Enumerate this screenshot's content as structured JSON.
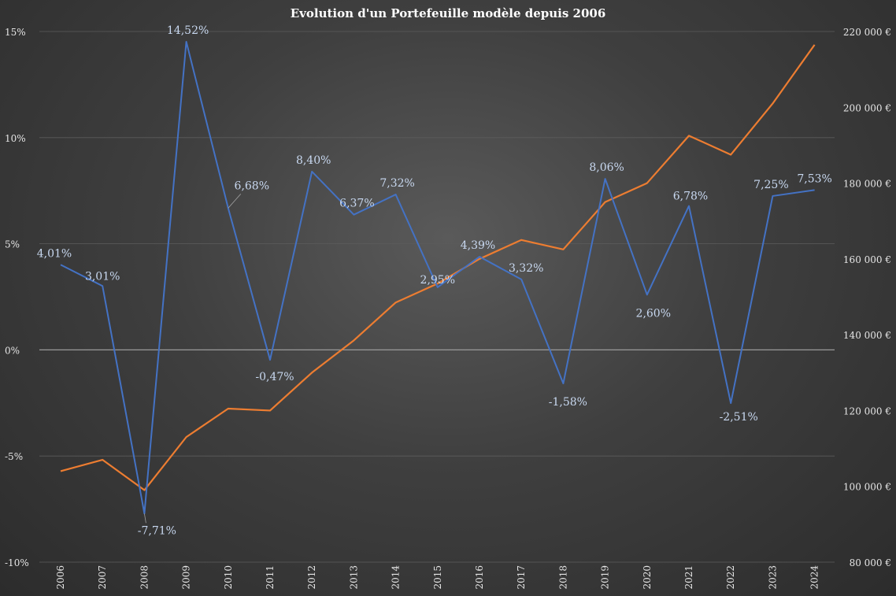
{
  "chart_data": {
    "type": "line",
    "title": "Evolution d'un Portefeuille modèle depuis 2006",
    "categories": [
      "2006",
      "2007",
      "2008",
      "2009",
      "2010",
      "2011",
      "2012",
      "2013",
      "2014",
      "2015",
      "2016",
      "2017",
      "2018",
      "2019",
      "2020",
      "2021",
      "2022",
      "2023",
      "2024"
    ],
    "series": [
      {
        "axis": "left",
        "color": "#4472c4",
        "values": [
          4.01,
          3.01,
          -7.71,
          14.52,
          6.68,
          -0.47,
          8.4,
          6.37,
          7.32,
          2.95,
          4.39,
          3.32,
          -1.58,
          8.06,
          2.6,
          6.78,
          -2.51,
          7.25,
          7.53
        ],
        "labels": [
          "4,01%",
          "3,01%",
          "-7,71%",
          "14,52%",
          "6,68%",
          "-0,47%",
          "8,40%",
          "6,37%",
          "7,32%",
          "2,95%",
          "4,39%",
          "3,32%",
          "-1,58%",
          "8,06%",
          "2,60%",
          "6,78%",
          "-2,51%",
          "7,25%",
          "7,53%"
        ]
      },
      {
        "axis": "right",
        "color": "#ed7d31",
        "values": [
          104000,
          107000,
          99000,
          113000,
          120500,
          120000,
          130000,
          138500,
          148500,
          153500,
          160000,
          165000,
          162500,
          175000,
          180000,
          192500,
          187500,
          201000,
          216500
        ]
      }
    ],
    "yleft": {
      "lim": [
        -10,
        15
      ],
      "ticks": [
        15,
        10,
        5,
        0,
        -5,
        -10
      ],
      "tick_labels": [
        "15%",
        "10%",
        "5%",
        "0%",
        "-5%",
        "-10%"
      ]
    },
    "yright": {
      "lim": [
        80000,
        220000
      ],
      "ticks": [
        220000,
        200000,
        180000,
        160000,
        140000,
        120000,
        100000,
        80000
      ],
      "tick_labels": [
        "220 000 €",
        "200 000 €",
        "180 000 €",
        "160 000 €",
        "140 000 €",
        "120 000 €",
        "100 000 €",
        "80 000 €"
      ]
    },
    "grid": true,
    "colors": {
      "background_center": "#5a5a5a",
      "background_edge": "#2c2c2c",
      "gridline": "#5c5c5c",
      "zero_line": "#9a9a9a",
      "label_text": "#c8d8f0",
      "axis_text": "#e6e6e6",
      "title_text": "#ffffff"
    }
  }
}
